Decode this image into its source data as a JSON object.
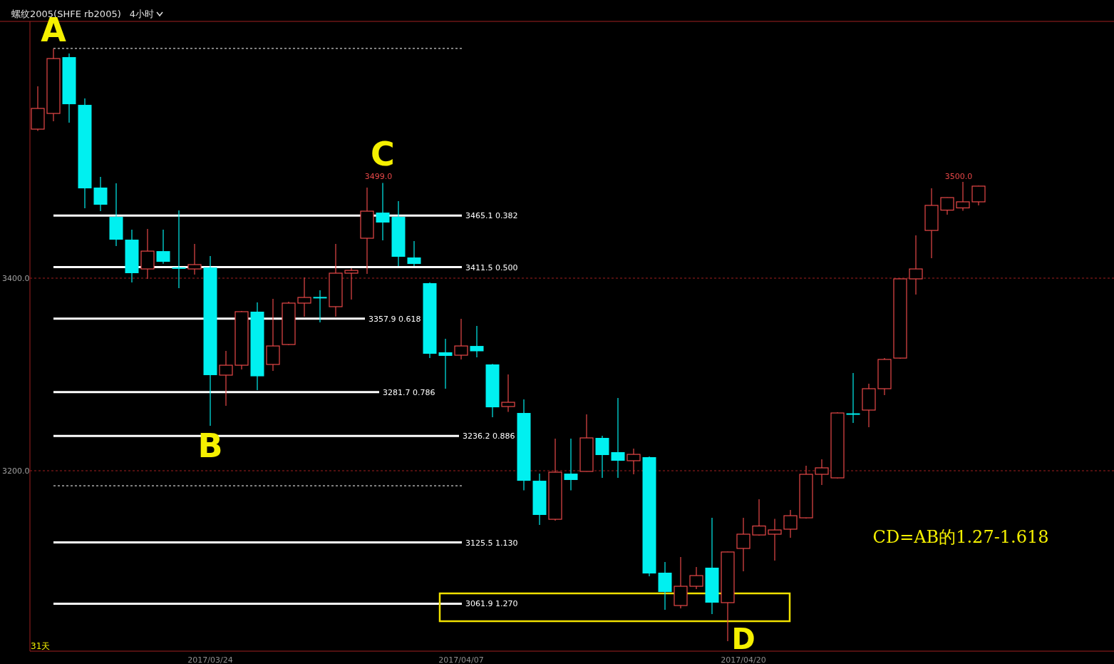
{
  "chart_data": {
    "type": "candlestick",
    "title": "螺纹2005(SHFE rb2005)",
    "subtitle": "4小时",
    "categories": [
      null,
      null,
      null,
      null,
      null,
      null,
      null,
      null,
      null,
      null,
      null,
      "2017/03/24",
      null,
      null,
      null,
      null,
      null,
      null,
      null,
      null,
      null,
      null,
      null,
      null,
      null,
      null,
      null,
      "2017/04/07",
      null,
      null,
      null,
      null,
      null,
      null,
      null,
      null,
      null,
      null,
      null,
      null,
      null,
      null,
      null,
      null,
      null,
      "2017/04/20",
      null,
      null,
      null,
      null,
      null,
      null,
      null,
      null,
      null,
      null,
      null,
      null,
      null,
      null,
      null
    ],
    "ohlc": [
      [
        3554.8,
        3599.3,
        3553.0,
        3576.3
      ],
      [
        3571.1,
        3638.6,
        3563.0,
        3628.1
      ],
      [
        3629.6,
        3633.3,
        3561.5,
        3580.7
      ],
      [
        3580.0,
        3586.7,
        3472.6,
        3493.3
      ],
      [
        3494.1,
        3505.2,
        3469.6,
        3476.3
      ],
      [
        3463.7,
        3498.5,
        3433.3,
        3440.0
      ],
      [
        3440.0,
        3450.4,
        3395.6,
        3405.2
      ],
      [
        3409.6,
        3451.1,
        3399.3,
        3428.1
      ],
      [
        3428.1,
        3450.4,
        3415.0,
        3417.0
      ],
      [
        3411.2,
        3470.4,
        3389.6,
        3410.4
      ],
      [
        3409.6,
        3435.6,
        3403.7,
        3414.1
      ],
      [
        3411.1,
        3423.0,
        3246.7,
        3299.3
      ],
      [
        3299.3,
        3324.4,
        3267.4,
        3309.6
      ],
      [
        3309.6,
        3366.0,
        3305.2,
        3365.2
      ],
      [
        3365.2,
        3374.8,
        3283.7,
        3298.1
      ],
      [
        3310.4,
        3378.5,
        3303.7,
        3329.6
      ],
      [
        3331.1,
        3375.6,
        3330.4,
        3374.1
      ],
      [
        3374.1,
        3400.7,
        3360.0,
        3380.0
      ],
      [
        3380.5,
        3387.4,
        3354.1,
        3380.0
      ],
      [
        3370.4,
        3435.6,
        3360.0,
        3405.2
      ],
      [
        3405.2,
        3410.4,
        3377.8,
        3408.1
      ],
      [
        3441.5,
        3494.1,
        3404.4,
        3469.6
      ],
      [
        3468.1,
        3499.0,
        3439.3,
        3457.8
      ],
      [
        3463.7,
        3480.0,
        3412.6,
        3422.2
      ],
      [
        3421.5,
        3438.5,
        3412.6,
        3414.8
      ],
      [
        3394.8,
        3395.6,
        3317.0,
        3321.5
      ],
      [
        3323.0,
        3337.0,
        3285.2,
        3319.3
      ],
      [
        3320.0,
        3357.8,
        3315.6,
        3329.6
      ],
      [
        3329.6,
        3350.4,
        3317.8,
        3324.1
      ],
      [
        3310.4,
        3311.0,
        3255.6,
        3265.9
      ],
      [
        3266.7,
        3300.0,
        3261.1,
        3271.1
      ],
      [
        3260.0,
        3274.1,
        3179.6,
        3189.6
      ],
      [
        3189.6,
        3197.0,
        3143.7,
        3154.1
      ],
      [
        3149.6,
        3233.3,
        3148.1,
        3198.5
      ],
      [
        3197.0,
        3233.3,
        3179.6,
        3190.4
      ],
      [
        3199.3,
        3258.5,
        3199.0,
        3234.1
      ],
      [
        3234.1,
        3236.3,
        3192.6,
        3216.3
      ],
      [
        3219.3,
        3275.6,
        3192.6,
        3210.4
      ],
      [
        3210.4,
        3223.0,
        3196.3,
        3217.0
      ],
      [
        3214.1,
        3214.8,
        3090.4,
        3093.3
      ],
      [
        3094.1,
        3105.2,
        3055.6,
        3074.1
      ],
      [
        3060.0,
        3110.4,
        3057.0,
        3080.0
      ],
      [
        3080.0,
        3100.0,
        3077.0,
        3091.1
      ],
      [
        3099.3,
        3151.1,
        3051.1,
        3063.0
      ],
      [
        3063.0,
        3116.0,
        3022.9,
        3115.6
      ],
      [
        3119.3,
        3151.1,
        3095.6,
        3134.1
      ],
      [
        3133.3,
        3170.4,
        3132.6,
        3142.6
      ],
      [
        3134.1,
        3150.0,
        3106.7,
        3138.5
      ],
      [
        3139.3,
        3159.3,
        3130.4,
        3153.3
      ],
      [
        3151.1,
        3205.2,
        3150.4,
        3196.3
      ],
      [
        3196.3,
        3211.9,
        3185.2,
        3203.0
      ],
      [
        3192.6,
        3260.7,
        3192.0,
        3260.0
      ],
      [
        3259.6,
        3301.5,
        3249.6,
        3259.3
      ],
      [
        3263.0,
        3290.4,
        3245.2,
        3285.2
      ],
      [
        3285.2,
        3317.0,
        3278.5,
        3315.6
      ],
      [
        3317.0,
        3399.6,
        3316.3,
        3399.3
      ],
      [
        3399.3,
        3444.4,
        3383.0,
        3409.6
      ],
      [
        3449.6,
        3493.3,
        3420.7,
        3475.6
      ],
      [
        3470.7,
        3484.0,
        3465.9,
        3483.7
      ],
      [
        3473.0,
        3500.0,
        3470.0,
        3479.3
      ],
      [
        3479.3,
        3496.0,
        3475.6,
        3495.6
      ]
    ],
    "colors": [
      "#e84848",
      "#e84848",
      "#00f0f0",
      "#00f0f0",
      "#00f0f0",
      "#00f0f0",
      "#00f0f0",
      "#e84848",
      "#00f0f0",
      "#00f0f0",
      "#e84848",
      "#00f0f0",
      "#e84848",
      "#e84848",
      "#00f0f0",
      "#e84848",
      "#e84848",
      "#e84848",
      "#00f0f0",
      "#e84848",
      "#e84848",
      "#e84848",
      "#00f0f0",
      "#00f0f0",
      "#00f0f0",
      "#00f0f0",
      "#00f0f0",
      "#e84848",
      "#00f0f0",
      "#00f0f0",
      "#e84848",
      "#00f0f0",
      "#00f0f0",
      "#e84848",
      "#00f0f0",
      "#e84848",
      "#00f0f0",
      "#00f0f0",
      "#e84848",
      "#00f0f0",
      "#00f0f0",
      "#e84848",
      "#e84848",
      "#00f0f0",
      "#e84848",
      "#e84848",
      "#e84848",
      "#e84848",
      "#e84848",
      "#e84848",
      "#e84848",
      "#e84848",
      "#00f0f0",
      "#e84848",
      "#e84848",
      "#e84848",
      "#e84848",
      "#e84848",
      "#e84848",
      "#e84848",
      "#e84848"
    ],
    "ylim": [
      3012.6,
      3666.7
    ],
    "yticks": [
      {
        "value": 3400,
        "label": "3400.0"
      },
      {
        "value": 3200,
        "label": "3200.0"
      }
    ],
    "grid": "y",
    "ref_lines": [
      {
        "axis": "y",
        "value": 3638.6,
        "color": "#ffffff",
        "line_style": "dashed"
      },
      {
        "axis": "y",
        "value": 3465.1,
        "label": "3465.1 0.382",
        "color": "#ffffff"
      },
      {
        "axis": "y",
        "value": 3411.5,
        "label": "3411.5 0.500",
        "color": "#ffffff"
      },
      {
        "axis": "y",
        "value": 3357.9,
        "label": "3357.9 0.618",
        "color": "#ffffff"
      },
      {
        "axis": "y",
        "value": 3281.7,
        "label": "3281.7 0.786",
        "color": "#ffffff"
      },
      {
        "axis": "y",
        "value": 3236.2,
        "label": "3236.2 0.886",
        "color": "#ffffff"
      },
      {
        "axis": "y",
        "value": 3184.4,
        "color": "#ffffff",
        "line_style": "dashed"
      },
      {
        "axis": "y",
        "value": 3125.5,
        "label": "3125.5 1.130",
        "color": "#ffffff"
      },
      {
        "axis": "y",
        "value": 3061.9,
        "label": "3061.9 1.270",
        "color": "#ffffff"
      }
    ],
    "annotations": [
      {
        "text": "A",
        "y": 3638.6
      },
      {
        "text": "B",
        "y": 3246.7
      },
      {
        "text": "C",
        "y": 3499.0
      },
      "D",
      "3499.0",
      "3500.0",
      "CD=AB的1.27-1.618",
      "31天"
    ]
  }
}
